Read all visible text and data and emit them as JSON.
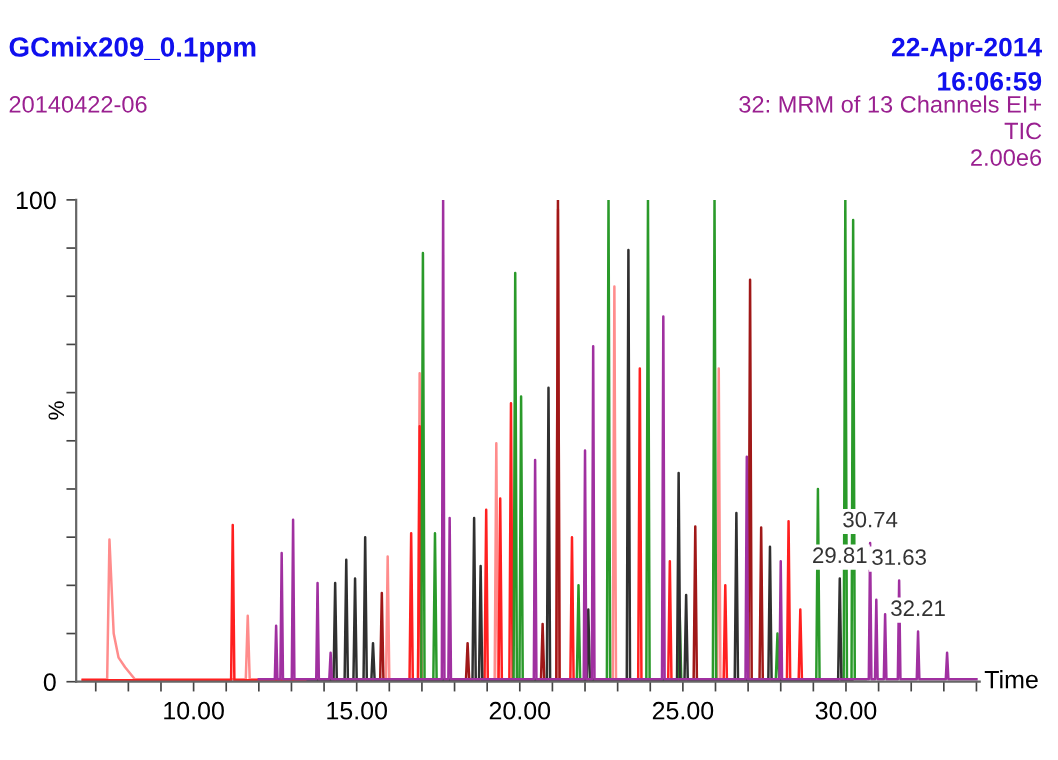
{
  "chart_data": {
    "type": "line",
    "title": "GCmix209_0.1ppm",
    "subtitle": "20140422-06",
    "xlabel": "Time",
    "ylabel": "%",
    "annotations": [
      "22-Apr-2014",
      "16:06:59",
      "32: MRM of 13 Channels EI+",
      "TIC",
      "2.00e6",
      {
        "text": "29.81",
        "x": 29.81,
        "y": 21.4
      },
      {
        "text": "30.74",
        "x": 30.74,
        "y": 28.8
      },
      {
        "text": "31.63",
        "x": 31.63,
        "y": 21
      },
      {
        "text": "32.21",
        "x": 32.21,
        "y": 10.4
      }
    ],
    "xlim": [
      6.4,
      34.1
    ],
    "ylim": [
      0,
      100
    ],
    "xticks": [
      {
        "value": 7,
        "label": null
      },
      {
        "value": 8,
        "label": null
      },
      {
        "value": 9,
        "label": null
      },
      {
        "value": 10,
        "label": "10.00"
      },
      {
        "value": 11,
        "label": null
      },
      {
        "value": 12,
        "label": null
      },
      {
        "value": 13,
        "label": null
      },
      {
        "value": 14,
        "label": null
      },
      {
        "value": 15,
        "label": "15.00"
      },
      {
        "value": 16,
        "label": null
      },
      {
        "value": 17,
        "label": null
      },
      {
        "value": 18,
        "label": null
      },
      {
        "value": 19,
        "label": null
      },
      {
        "value": 20,
        "label": "20.00"
      },
      {
        "value": 21,
        "label": null
      },
      {
        "value": 22,
        "label": null
      },
      {
        "value": 23,
        "label": null
      },
      {
        "value": 24,
        "label": null
      },
      {
        "value": 25,
        "label": "25.00"
      },
      {
        "value": 26,
        "label": null
      },
      {
        "value": 27,
        "label": null
      },
      {
        "value": 28,
        "label": null
      },
      {
        "value": 29,
        "label": null
      },
      {
        "value": 30,
        "label": "30.00"
      },
      {
        "value": 31,
        "label": null
      },
      {
        "value": 32,
        "label": null
      },
      {
        "value": 33,
        "label": null
      },
      {
        "value": 34,
        "label": null
      }
    ],
    "yticks": [
      0,
      {
        "value": 10,
        "label": null
      },
      {
        "value": 20,
        "label": null
      },
      {
        "value": 30,
        "label": null
      },
      {
        "value": 40,
        "label": null
      },
      {
        "value": 50,
        "label": null
      },
      {
        "value": 60,
        "label": null
      },
      {
        "value": 70,
        "label": null
      },
      {
        "value": 80,
        "label": null
      },
      {
        "value": 90,
        "label": null
      },
      100
    ],
    "series": [
      {
        "color": "#ff8c8c",
        "x": [
          6.6,
          7.35,
          7.42,
          7.55,
          7.7,
          7.9,
          8.2,
          11.6,
          11.66,
          11.72,
          15.9,
          15.95,
          16.0,
          16.88,
          16.93,
          16.98,
          19.23,
          19.28,
          19.33,
          21.12,
          21.17,
          21.22,
          22.85,
          22.9,
          22.95,
          26.05,
          26.1,
          26.15
        ],
        "values": [
          0.5,
          0.5,
          29.5,
          10,
          5,
          3,
          0.5,
          0.5,
          13.7,
          0.5,
          0.5,
          26,
          0.5,
          0.5,
          64,
          0.5,
          0.5,
          49.5,
          0.5,
          0.5,
          98,
          0.5,
          0.5,
          82,
          0.5,
          0.5,
          65,
          0.5
        ]
      },
      {
        "color": "#ff2020",
        "x": [
          6.6,
          11.15,
          11.2,
          11.25,
          16.62,
          16.67,
          16.72,
          16.88,
          16.93,
          16.98,
          18.92,
          18.97,
          19.02,
          19.35,
          19.4,
          19.45,
          19.68,
          19.73,
          19.78,
          21.55,
          21.6,
          21.65,
          23.63,
          23.68,
          23.73,
          24.55,
          24.6,
          24.65,
          26.25,
          26.3,
          26.35,
          28.19,
          28.24,
          28.29,
          28.55,
          28.6,
          28.65
        ],
        "values": [
          0.3,
          0.3,
          32.5,
          0.3,
          0.3,
          30.8,
          0.3,
          0.3,
          53,
          0.3,
          0.3,
          35.7,
          0.3,
          0.3,
          38,
          0.3,
          0.3,
          57.8,
          0.3,
          0.3,
          30,
          0.3,
          0.3,
          65,
          0.3,
          0.3,
          25,
          0.3,
          0.3,
          20,
          0.3,
          0.3,
          33.3,
          0.3,
          0.3,
          15,
          0.3
        ]
      },
      {
        "color": "#a01818",
        "x": [
          14.0,
          15.72,
          15.77,
          15.82,
          18.35,
          18.4,
          18.45,
          20.65,
          20.7,
          20.75,
          21.12,
          21.17,
          21.22,
          22.67,
          22.72,
          22.77,
          25.33,
          25.38,
          25.43,
          27.01,
          27.06,
          27.11,
          27.35,
          27.4,
          27.45,
          29.0
        ],
        "values": [
          0.3,
          0.3,
          18.4,
          0.3,
          0.3,
          8,
          0.3,
          0.3,
          12,
          0.3,
          0.3,
          100,
          0.3,
          0.3,
          null,
          0.3,
          0.3,
          32.2,
          0.3,
          0.3,
          83.4,
          0.3,
          0.3,
          32,
          0.3,
          0.3
        ]
      },
      {
        "color": "#2a9a2a",
        "x": [
          16.0,
          16.98,
          17.03,
          17.08,
          17.35,
          17.4,
          17.45,
          19.81,
          19.86,
          19.91,
          19.99,
          20.04,
          20.09,
          21.75,
          21.8,
          21.85,
          22.67,
          22.72,
          22.77,
          23.88,
          23.93,
          23.98,
          24.85,
          24.9,
          24.95,
          25.92,
          25.97,
          26.02,
          27.85,
          27.9,
          27.95,
          29.09,
          29.14,
          29.19,
          29.93,
          29.98,
          30.03,
          30.17,
          30.22,
          30.27,
          30.6
        ],
        "values": [
          0.5,
          0.5,
          89,
          0.5,
          0.5,
          30.8,
          0.5,
          0.5,
          84.8,
          0.5,
          0.5,
          59.2,
          0.5,
          0.5,
          20,
          0.5,
          0.5,
          100,
          0.5,
          0.5,
          100,
          0.5,
          0.5,
          15,
          0.5,
          0.5,
          100,
          0.5,
          0.5,
          10,
          0.5,
          0.5,
          40,
          0.5,
          0.5,
          100,
          0.5,
          0.5,
          95.8,
          0.5,
          0.5
        ]
      },
      {
        "color": "#303030",
        "x": [
          13.5,
          14.29,
          14.34,
          14.39,
          14.63,
          14.68,
          14.73,
          14.9,
          14.95,
          15.0,
          15.21,
          15.26,
          15.31,
          15.45,
          15.5,
          15.55,
          18.55,
          18.6,
          18.65,
          18.75,
          18.8,
          18.85,
          20.83,
          20.88,
          20.93,
          22.05,
          22.1,
          22.15,
          23.28,
          23.33,
          23.38,
          24.82,
          24.87,
          24.92,
          25.05,
          25.1,
          25.15,
          26.59,
          26.64,
          26.69,
          27.62,
          27.67,
          27.72,
          29.76,
          29.81,
          29.86,
          30.2
        ],
        "values": [
          0.3,
          0.3,
          20.5,
          0.3,
          0.3,
          25.3,
          0.3,
          0.3,
          21.4,
          0.3,
          0.3,
          30,
          0.3,
          0.3,
          8,
          0.3,
          0.3,
          34,
          0.3,
          0.3,
          24,
          0.3,
          0.3,
          61,
          0.3,
          0.3,
          15,
          0.3,
          0.3,
          89.6,
          0.3,
          0.3,
          43.3,
          0.3,
          0.3,
          18,
          0.3,
          0.3,
          35,
          0.3,
          0.3,
          28,
          0.3,
          0.3,
          21.4,
          0.3,
          0.3
        ]
      },
      {
        "color": "#a030a0",
        "x": [
          12.0,
          12.49,
          12.53,
          12.57,
          12.66,
          12.7,
          12.74,
          13.01,
          13.05,
          13.09,
          13.76,
          13.8,
          13.84,
          14.16,
          14.2,
          14.24,
          17.61,
          17.65,
          17.69,
          17.81,
          17.85,
          17.89,
          20.43,
          20.47,
          20.51,
          21.96,
          22.0,
          22.04,
          22.21,
          22.25,
          22.29,
          24.36,
          24.4,
          24.44,
          26.92,
          26.96,
          27.0,
          27.96,
          28.0,
          28.04,
          30.7,
          30.74,
          30.78,
          30.89,
          30.93,
          30.97,
          31.16,
          31.2,
          31.24,
          31.59,
          31.63,
          31.67,
          32.17,
          32.21,
          32.25,
          33.06,
          33.1,
          33.14,
          34.0
        ],
        "values": [
          0.5,
          0.5,
          11.6,
          0.5,
          0.5,
          26.7,
          0.5,
          0.5,
          33.6,
          0.5,
          0.5,
          20.5,
          0.5,
          0.5,
          6,
          0.5,
          0.5,
          100,
          0.5,
          0.5,
          34,
          0.5,
          0.5,
          46,
          0.5,
          0.5,
          48,
          0.5,
          0.5,
          69.6,
          0.5,
          0.5,
          75.8,
          0.5,
          0.5,
          46.7,
          0.5,
          0.5,
          25,
          0.5,
          0.5,
          28.8,
          0.5,
          0.5,
          17,
          0.5,
          0.5,
          14,
          0.5,
          0.5,
          21,
          0.5,
          0.5,
          10.4,
          0.5,
          0.5,
          6,
          0.5,
          0.5
        ]
      }
    ]
  }
}
